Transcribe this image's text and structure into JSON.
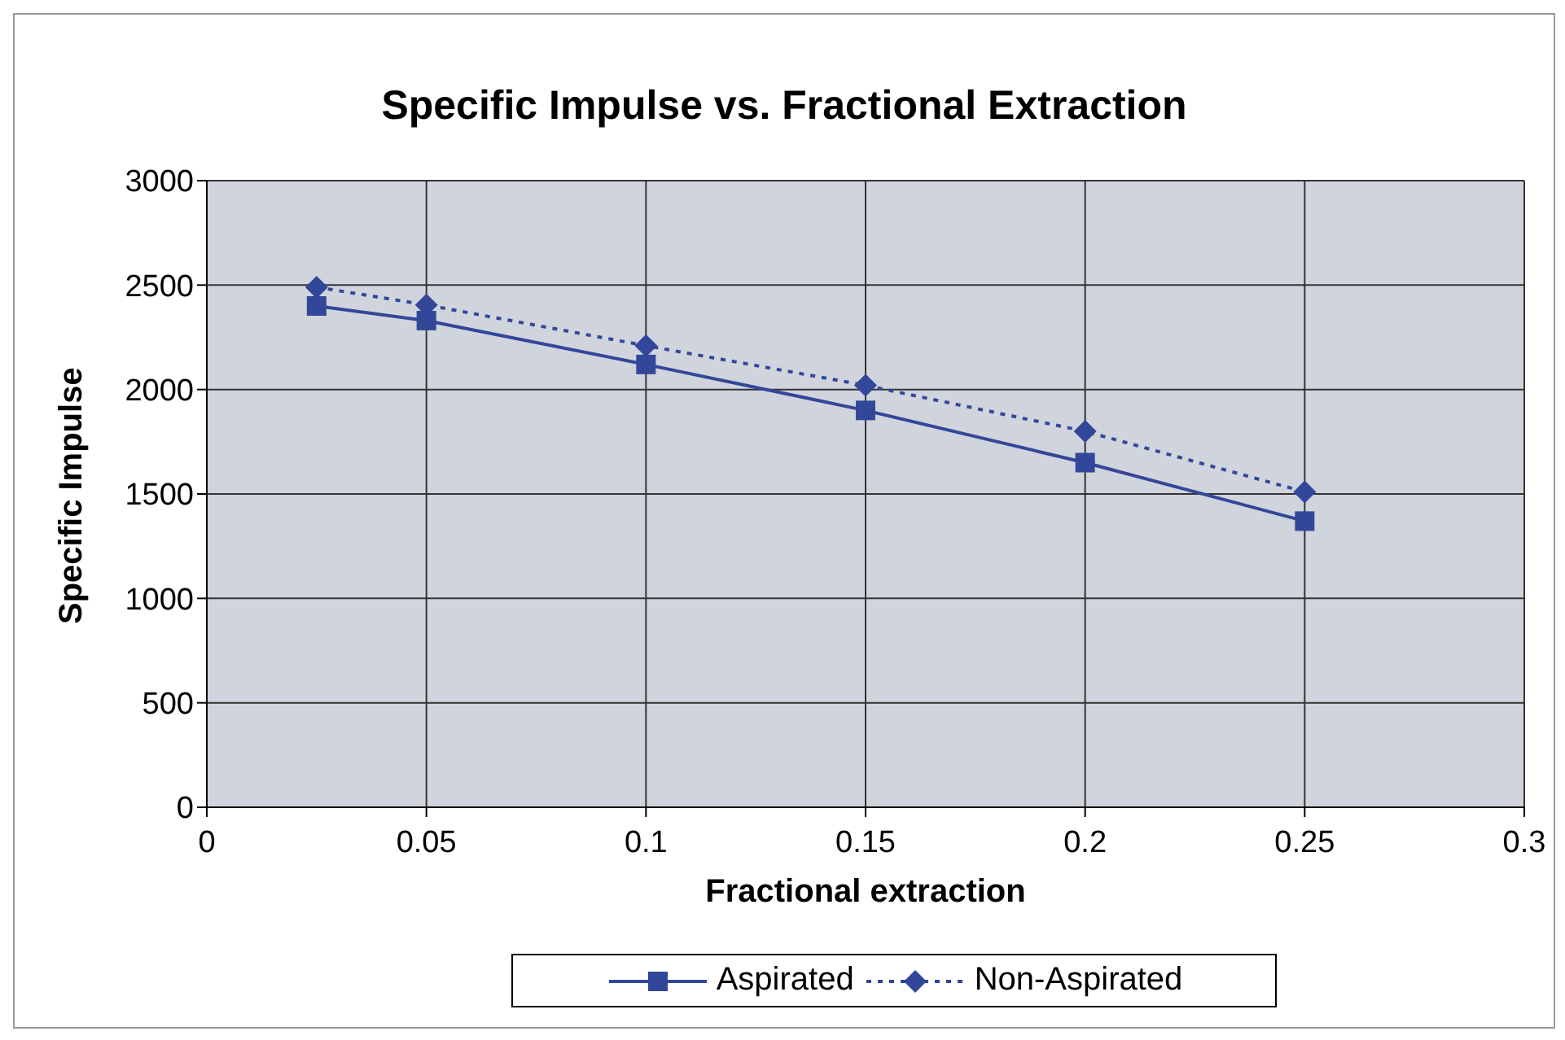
{
  "chart_data": {
    "type": "line",
    "title": "Specific Impulse vs. Fractional Extraction",
    "xlabel": "Fractional extraction",
    "ylabel": "Specific Impulse",
    "x": [
      0.025,
      0.05,
      0.1,
      0.15,
      0.2,
      0.25
    ],
    "series": [
      {
        "name": "Aspirated",
        "color": "#33479a",
        "values": [
          2400,
          2330,
          2120,
          1900,
          1650,
          1370
        ],
        "marker": "square",
        "line_style": "solid"
      },
      {
        "name": "Non-Aspirated",
        "color": "#33479a",
        "values": [
          2490,
          2405,
          2210,
          2020,
          1800,
          1510
        ],
        "marker": "diamond",
        "line_style": "dotted"
      }
    ],
    "xlim": [
      0,
      0.3
    ],
    "xticks": [
      0,
      0.05,
      0.1,
      0.15,
      0.2,
      0.25,
      0.3
    ],
    "ylim": [
      0,
      3000
    ],
    "yticks": [
      0,
      500,
      1000,
      1500,
      2000,
      2500,
      3000
    ],
    "grid": true,
    "legend": "bottom"
  }
}
